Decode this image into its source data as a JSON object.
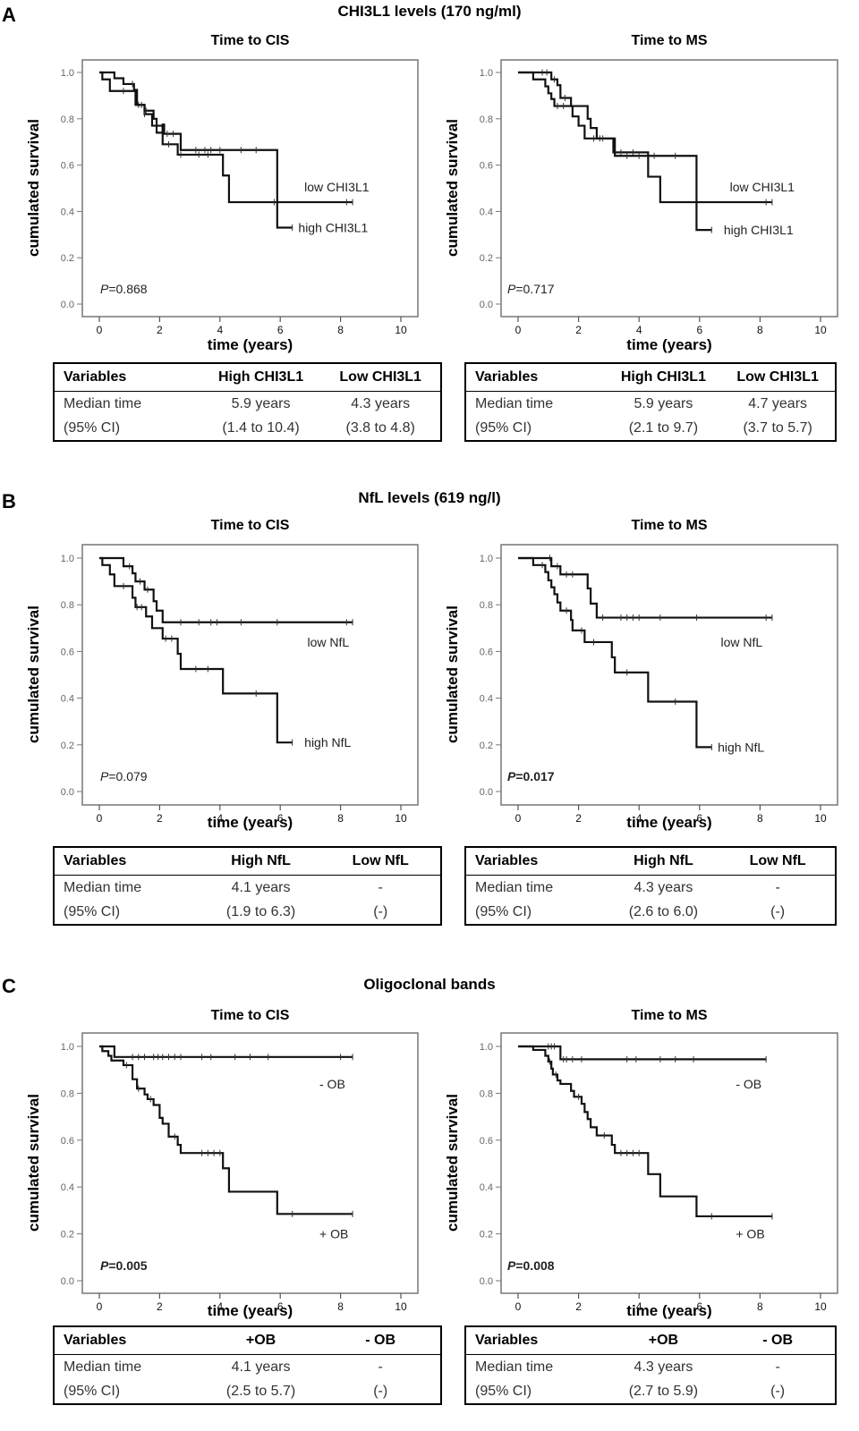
{
  "sections": [
    {
      "label": "A",
      "title": "CHI3L1 levels (170 ng/ml)",
      "plots": [
        {
          "title": "Time to CIS",
          "p_prefix": "P",
          "p_value": "=0.868",
          "p_bold": false,
          "table": {
            "headers": [
              "Variables",
              "High CHI3L1",
              "Low CHI3L1"
            ],
            "rows": [
              [
                "Median time",
                "5.9 years",
                "4.3 years"
              ],
              [
                "(95% CI)",
                "(1.4 to 10.4)",
                "(3.8 to 4.8)"
              ]
            ]
          }
        },
        {
          "title": "Time to MS",
          "p_prefix": "P",
          "p_value": "=0.717",
          "p_bold": false,
          "table": {
            "headers": [
              "Variables",
              "High CHI3L1",
              "Low CHI3L1"
            ],
            "rows": [
              [
                "Median time",
                "5.9 years",
                "4.7 years"
              ],
              [
                "(95% CI)",
                "(2.1 to 9.7)",
                "(3.7 to 5.7)"
              ]
            ]
          }
        }
      ]
    },
    {
      "label": "B",
      "title": "NfL levels (619 ng/l)",
      "plots": [
        {
          "title": "Time to CIS",
          "p_prefix": "P",
          "p_value": "=0.079",
          "p_bold": false,
          "table": {
            "headers": [
              "Variables",
              "High NfL",
              "Low NfL"
            ],
            "rows": [
              [
                "Median time",
                "4.1 years",
                "-"
              ],
              [
                "(95% CI)",
                "(1.9 to 6.3)",
                "(-)"
              ]
            ]
          }
        },
        {
          "title": "Time to MS",
          "p_prefix": "P",
          "p_value": "=0.017",
          "p_bold": true,
          "table": {
            "headers": [
              "Variables",
              "High NfL",
              "Low NfL"
            ],
            "rows": [
              [
                "Median time",
                "4.3 years",
                "-"
              ],
              [
                "(95% CI)",
                "(2.6 to 6.0)",
                "(-)"
              ]
            ]
          }
        }
      ]
    },
    {
      "label": "C",
      "title": "Oligoclonal bands",
      "plots": [
        {
          "title": "Time to CIS",
          "p_prefix": "P",
          "p_value": "=0.005",
          "p_bold": true,
          "table": {
            "headers": [
              "Variables",
              "+OB",
              "- OB"
            ],
            "rows": [
              [
                "Median time",
                "4.1 years",
                "-"
              ],
              [
                "(95% CI)",
                "(2.5 to 5.7)",
                "(-)"
              ]
            ]
          }
        },
        {
          "title": "Time to MS",
          "p_prefix": "P",
          "p_value": "=0.008",
          "p_bold": true,
          "table": {
            "headers": [
              "Variables",
              "+OB",
              "- OB"
            ],
            "rows": [
              [
                "Median time",
                "4.3 years",
                "-"
              ],
              [
                "(95% CI)",
                "(2.7 to 5.9)",
                "(-)"
              ]
            ]
          }
        }
      ]
    }
  ],
  "axis": {
    "xlabel": "time (years)",
    "ylabel": "cumulated survival",
    "xticks": [
      "0",
      "2",
      "4",
      "6",
      "8",
      "10"
    ],
    "yticks": [
      "0.0",
      "0.2",
      "0.4",
      "0.6",
      "0.8",
      "1.0"
    ]
  },
  "chart_data": [
    {
      "type": "line",
      "id": "A-CIS",
      "title": "Time to CIS",
      "xlabel": "time (years)",
      "ylabel": "cumulated survival",
      "xlim": [
        0,
        10
      ],
      "ylim": [
        0,
        1.0
      ],
      "series": [
        {
          "name": "low CHI3L1",
          "steps": [
            [
              0,
              1.0
            ],
            [
              0.1,
              0.97
            ],
            [
              0.35,
              0.92
            ],
            [
              1.2,
              0.86
            ],
            [
              1.5,
              0.82
            ],
            [
              1.75,
              0.77
            ],
            [
              2.1,
              0.69
            ],
            [
              2.6,
              0.645
            ],
            [
              4.1,
              0.555
            ],
            [
              4.3,
              0.44
            ]
          ],
          "end": 8.4,
          "censors": [
            0.8,
            1.3,
            1.5,
            2.3,
            2.7,
            3.3,
            3.6,
            5.8,
            8.2,
            8.4
          ]
        },
        {
          "name": "high CHI3L1",
          "steps": [
            [
              0,
              1.0
            ],
            [
              0.5,
              0.975
            ],
            [
              0.8,
              0.95
            ],
            [
              1.15,
              0.925
            ],
            [
              1.25,
              0.86
            ],
            [
              1.5,
              0.835
            ],
            [
              1.8,
              0.8
            ],
            [
              1.9,
              0.74
            ],
            [
              2.1,
              0.775
            ],
            [
              2.15,
              0.735
            ],
            [
              2.7,
              0.665
            ],
            [
              5.9,
              0.33
            ]
          ],
          "end": 6.4,
          "censors": [
            1.1,
            1.4,
            1.55,
            2.25,
            2.45,
            3.2,
            3.5,
            3.7,
            4.0,
            4.7,
            5.2,
            6.4
          ]
        }
      ],
      "annotations": [
        "low CHI3L1",
        "high CHI3L1",
        "P=0.868"
      ]
    },
    {
      "type": "line",
      "id": "A-MS",
      "title": "Time to MS",
      "xlabel": "time (years)",
      "ylabel": "cumulated survival",
      "xlim": [
        0,
        10
      ],
      "ylim": [
        0,
        1.0
      ],
      "series": [
        {
          "name": "low CHI3L1",
          "steps": [
            [
              0,
              1.0
            ],
            [
              0.5,
              0.97
            ],
            [
              0.9,
              0.94
            ],
            [
              1.0,
              0.91
            ],
            [
              1.1,
              0.885
            ],
            [
              1.2,
              0.855
            ],
            [
              1.8,
              0.81
            ],
            [
              2.0,
              0.77
            ],
            [
              2.2,
              0.715
            ],
            [
              3.15,
              0.655
            ],
            [
              4.3,
              0.55
            ],
            [
              4.7,
              0.44
            ]
          ],
          "end": 8.4,
          "censors": [
            1.3,
            1.5,
            2.5,
            2.7,
            3.4,
            3.8,
            5.9,
            8.2,
            8.4
          ]
        },
        {
          "name": "high CHI3L1",
          "steps": [
            [
              0,
              1.0
            ],
            [
              1.1,
              0.97
            ],
            [
              1.3,
              0.945
            ],
            [
              1.4,
              0.89
            ],
            [
              1.75,
              0.855
            ],
            [
              2.3,
              0.8
            ],
            [
              2.4,
              0.76
            ],
            [
              2.6,
              0.715
            ],
            [
              3.2,
              0.64
            ],
            [
              5.9,
              0.32
            ]
          ],
          "end": 6.4,
          "censors": [
            0.8,
            0.95,
            1.2,
            1.55,
            2.8,
            3.6,
            4.0,
            4.5,
            5.2,
            6.4
          ]
        }
      ],
      "annotations": [
        "low CHI3L1",
        "high CHI3L1",
        "P=0.717"
      ]
    },
    {
      "type": "line",
      "id": "B-CIS",
      "title": "Time to CIS",
      "xlabel": "time (years)",
      "ylabel": "cumulated survival",
      "xlim": [
        0,
        10
      ],
      "ylim": [
        0,
        1.0
      ],
      "series": [
        {
          "name": "low NfL",
          "steps": [
            [
              0,
              1.0
            ],
            [
              0.8,
              0.965
            ],
            [
              1.1,
              0.935
            ],
            [
              1.2,
              0.9
            ],
            [
              1.5,
              0.865
            ],
            [
              1.8,
              0.815
            ],
            [
              1.9,
              0.775
            ],
            [
              2.1,
              0.725
            ]
          ],
          "end": 8.4,
          "censors": [
            1.0,
            1.35,
            1.6,
            2.7,
            3.3,
            3.7,
            3.9,
            4.7,
            5.9,
            8.2,
            8.4
          ]
        },
        {
          "name": "high NfL",
          "steps": [
            [
              0,
              1.0
            ],
            [
              0.1,
              0.97
            ],
            [
              0.35,
              0.93
            ],
            [
              0.5,
              0.88
            ],
            [
              1.1,
              0.83
            ],
            [
              1.2,
              0.79
            ],
            [
              1.55,
              0.75
            ],
            [
              1.75,
              0.7
            ],
            [
              2.1,
              0.655
            ],
            [
              2.6,
              0.59
            ],
            [
              2.7,
              0.525
            ],
            [
              4.1,
              0.42
            ],
            [
              5.9,
              0.21
            ]
          ],
          "end": 6.4,
          "censors": [
            0.8,
            1.25,
            1.4,
            2.2,
            2.4,
            3.2,
            3.6,
            5.2,
            6.4
          ]
        }
      ],
      "annotations": [
        "low NfL",
        "high NfL",
        "P=0.079"
      ]
    },
    {
      "type": "line",
      "id": "B-MS",
      "title": "Time to MS",
      "xlabel": "time (years)",
      "ylabel": "cumulated survival",
      "xlim": [
        0,
        10
      ],
      "ylim": [
        0,
        1.0
      ],
      "series": [
        {
          "name": "low NfL",
          "steps": [
            [
              0,
              1.0
            ],
            [
              1.1,
              0.965
            ],
            [
              1.4,
              0.93
            ],
            [
              2.3,
              0.87
            ],
            [
              2.4,
              0.805
            ],
            [
              2.6,
              0.745
            ]
          ],
          "end": 8.4,
          "censors": [
            1.05,
            1.3,
            1.6,
            1.8,
            2.8,
            3.4,
            3.6,
            3.8,
            4.0,
            4.7,
            5.9,
            8.2,
            8.4
          ]
        },
        {
          "name": "high NfL",
          "steps": [
            [
              0,
              1.0
            ],
            [
              0.5,
              0.97
            ],
            [
              0.9,
              0.94
            ],
            [
              1.0,
              0.905
            ],
            [
              1.1,
              0.875
            ],
            [
              1.2,
              0.845
            ],
            [
              1.3,
              0.81
            ],
            [
              1.4,
              0.775
            ],
            [
              1.75,
              0.735
            ],
            [
              1.8,
              0.69
            ],
            [
              2.2,
              0.64
            ],
            [
              3.1,
              0.575
            ],
            [
              3.2,
              0.51
            ],
            [
              4.3,
              0.385
            ],
            [
              5.9,
              0.19
            ]
          ],
          "end": 6.4,
          "censors": [
            0.8,
            1.6,
            2.1,
            2.5,
            3.6,
            5.2,
            6.4
          ]
        }
      ],
      "annotations": [
        "low NfL",
        "high NfL",
        "P=0.017"
      ]
    },
    {
      "type": "line",
      "id": "C-CIS",
      "title": "Time to CIS",
      "xlabel": "time (years)",
      "ylabel": "cumulated survival",
      "xlim": [
        0,
        10
      ],
      "ylim": [
        0,
        1.0
      ],
      "series": [
        {
          "name": "- OB",
          "steps": [
            [
              0,
              1.0
            ],
            [
              0.5,
              0.955
            ]
          ],
          "end": 8.4,
          "censors": [
            1.1,
            1.3,
            1.5,
            1.8,
            1.95,
            2.1,
            2.3,
            2.5,
            2.7,
            3.4,
            3.7,
            4.5,
            5.0,
            5.6,
            8.0,
            8.4
          ]
        },
        {
          "name": "+ OB",
          "steps": [
            [
              0,
              1.0
            ],
            [
              0.1,
              0.98
            ],
            [
              0.3,
              0.96
            ],
            [
              0.4,
              0.94
            ],
            [
              0.8,
              0.92
            ],
            [
              1.1,
              0.86
            ],
            [
              1.25,
              0.82
            ],
            [
              1.5,
              0.795
            ],
            [
              1.6,
              0.775
            ],
            [
              1.8,
              0.75
            ],
            [
              2.0,
              0.695
            ],
            [
              2.1,
              0.67
            ],
            [
              2.3,
              0.615
            ],
            [
              2.6,
              0.58
            ],
            [
              2.7,
              0.545
            ],
            [
              4.1,
              0.48
            ],
            [
              4.3,
              0.38
            ],
            [
              5.9,
              0.285
            ]
          ],
          "end": 8.4,
          "censors": [
            0.9,
            1.3,
            1.7,
            2.5,
            3.4,
            3.6,
            3.8,
            4.0,
            6.4,
            8.4
          ]
        }
      ],
      "annotations": [
        "- OB",
        "+ OB",
        "P=0.005"
      ]
    },
    {
      "type": "line",
      "id": "C-MS",
      "title": "Time to MS",
      "xlabel": "time (years)",
      "ylabel": "cumulated survival",
      "xlim": [
        0,
        10
      ],
      "ylim": [
        0,
        1.0
      ],
      "series": [
        {
          "name": "- OB",
          "steps": [
            [
              0,
              1.0
            ],
            [
              1.4,
              0.945
            ]
          ],
          "end": 8.2,
          "censors": [
            1.0,
            1.1,
            1.2,
            1.5,
            1.6,
            1.8,
            2.1,
            3.6,
            3.9,
            4.7,
            5.2,
            5.8,
            8.2
          ]
        },
        {
          "name": "+ OB",
          "steps": [
            [
              0,
              1.0
            ],
            [
              0.5,
              0.985
            ],
            [
              0.9,
              0.96
            ],
            [
              1.0,
              0.935
            ],
            [
              1.1,
              0.905
            ],
            [
              1.15,
              0.88
            ],
            [
              1.3,
              0.855
            ],
            [
              1.4,
              0.84
            ],
            [
              1.75,
              0.81
            ],
            [
              1.85,
              0.785
            ],
            [
              2.1,
              0.755
            ],
            [
              2.2,
              0.72
            ],
            [
              2.3,
              0.69
            ],
            [
              2.4,
              0.655
            ],
            [
              2.6,
              0.62
            ],
            [
              3.1,
              0.58
            ],
            [
              3.2,
              0.545
            ],
            [
              4.3,
              0.455
            ],
            [
              4.7,
              0.36
            ],
            [
              5.9,
              0.275
            ]
          ],
          "end": 8.4,
          "censors": [
            1.05,
            1.25,
            2.0,
            2.85,
            3.4,
            3.6,
            3.8,
            4.0,
            6.4,
            8.4
          ]
        }
      ],
      "annotations": [
        "- OB",
        "+ OB",
        "P=0.008"
      ]
    }
  ]
}
